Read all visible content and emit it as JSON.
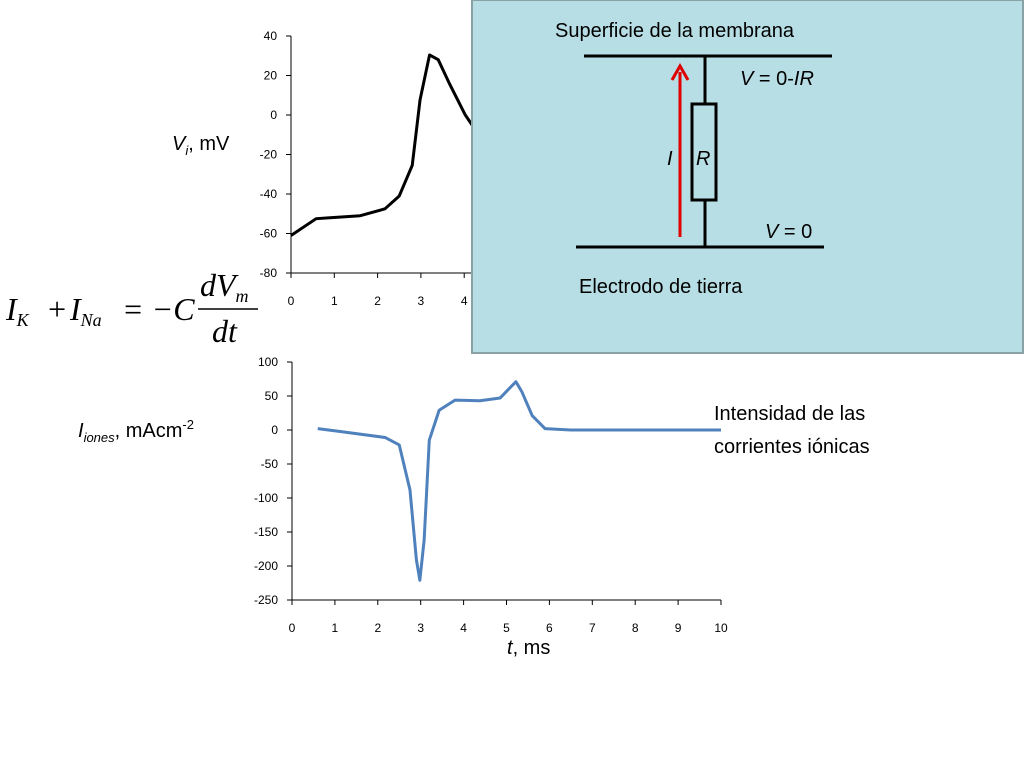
{
  "chart_data": [
    {
      "type": "line",
      "ylabel": {
        "symbol": "V",
        "subscript": "i",
        "unit": ", mV"
      },
      "x": [
        0,
        0.58,
        0.9,
        1.6,
        2.17,
        2.5,
        2.8,
        2.98,
        3.2,
        3.4,
        3.67,
        4.02,
        4.18
      ],
      "values": [
        -61,
        -52.5,
        -52,
        -51,
        -47.5,
        -41,
        -25.5,
        7.6,
        30.4,
        28,
        15.4,
        0.2,
        -5
      ],
      "color": "#000000",
      "xlim": [
        0,
        10
      ],
      "xticks": [
        0,
        1,
        2,
        3,
        4
      ],
      "ylim": [
        -80,
        40
      ],
      "yticks": [
        -80,
        -60,
        -40,
        -20,
        0,
        20,
        40
      ]
    },
    {
      "type": "line",
      "ylabel": {
        "symbol": "I",
        "subscript": "iones",
        "unit": ", mAcm",
        "exponent": "-2"
      },
      "xlabel": {
        "symbol": "t",
        "unit": ", ms"
      },
      "annotation": [
        "Intensidad de las",
        "corrientes iónicas"
      ],
      "x": [
        0.6,
        1.1,
        2.17,
        2.5,
        2.75,
        2.9,
        2.98,
        3.08,
        3.2,
        3.43,
        3.8,
        4.38,
        4.85,
        5.08,
        5.22,
        5.36,
        5.6,
        5.9,
        6.5,
        10
      ],
      "values": [
        2,
        -2,
        -11,
        -22,
        -88,
        -191,
        -221,
        -162,
        -15,
        29,
        44,
        43,
        47,
        62,
        71,
        56,
        21,
        2,
        0,
        0
      ],
      "color": "#4f81bd",
      "xlim": [
        0,
        10
      ],
      "xticks": [
        0,
        1,
        2,
        3,
        4,
        5,
        6,
        7,
        8,
        9,
        10
      ],
      "ylim": [
        -250,
        100
      ],
      "yticks": [
        -250,
        -200,
        -150,
        -100,
        -50,
        0,
        50,
        100
      ]
    }
  ],
  "equation": {
    "ik": "I",
    "ik_sub": "K",
    "plus": "+",
    "ina": "I",
    "ina_sub": "Na",
    "eq": "= −C",
    "num": "dV",
    "num_sub": "m",
    "den": "dt"
  },
  "diagram": {
    "title": "Superficie de la membrana",
    "v_top": {
      "symbol": "V",
      "mid": " = 0-",
      "term": "IR"
    },
    "current": "I",
    "resistance": "R",
    "v_bottom": {
      "symbol": "V",
      "rest": " = 0"
    },
    "ground": "Electrodo de tierra"
  }
}
